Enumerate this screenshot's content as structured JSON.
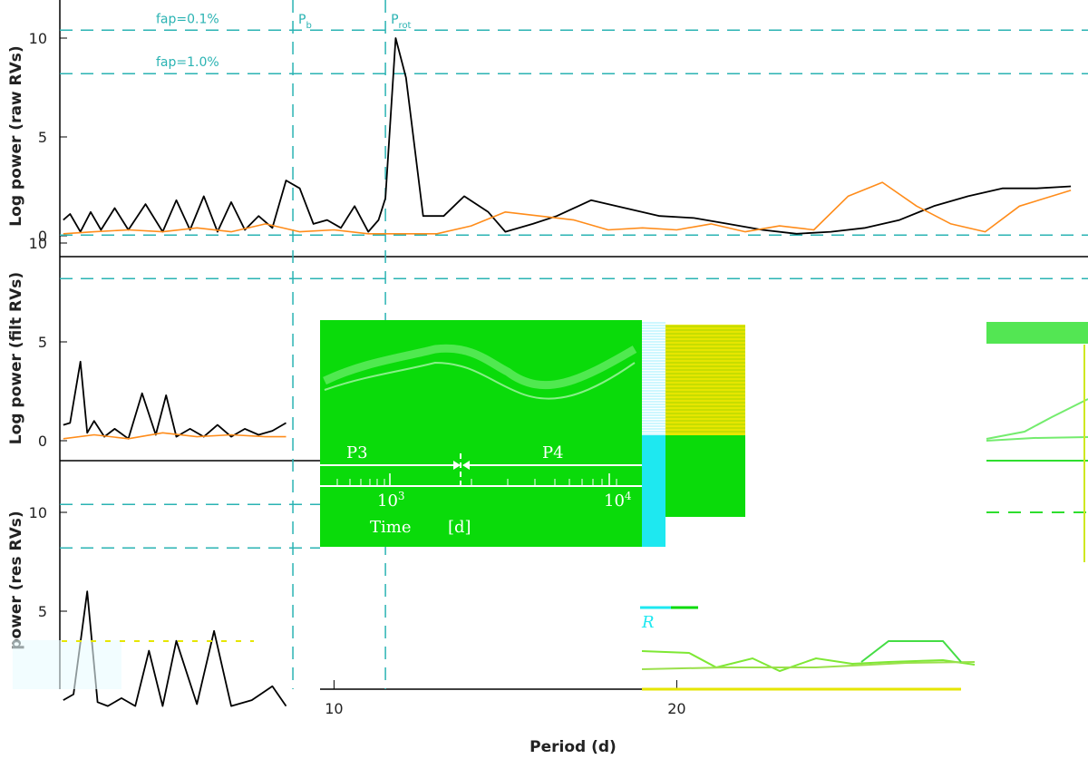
{
  "chart_data": {
    "type": "line",
    "xlabel": "Period (d)",
    "x_ticks": [
      10,
      20
    ],
    "panels": [
      {
        "ylabel": "Log power (raw RVs)",
        "ylim": [
          -1.2,
          14
        ],
        "y_ticks": [
          0,
          5,
          10
        ],
        "fap_levels": [
          {
            "label": "fap=0.1%",
            "value": 10.4
          },
          {
            "label": "fap=1.0%",
            "value": 8.2
          }
        ],
        "series": [
          {
            "color": "#000000",
            "x": [
              2.1,
              2.3,
              2.6,
              2.9,
              3.2,
              3.6,
              4.0,
              4.5,
              5.0,
              5.4,
              5.8,
              6.2,
              6.6,
              7.0,
              7.4,
              7.8,
              8.2,
              8.6,
              9.0,
              9.4,
              9.8,
              10.2,
              10.6,
              11.0,
              11.3,
              11.5,
              11.8,
              12.1,
              12.6,
              13.2,
              13.8,
              14.5,
              15.0,
              15.8,
              16.5,
              17.5,
              18.5,
              19.5,
              20.5,
              21.5,
              22.5,
              23.5,
              24.5,
              25.5,
              26.5,
              27.5,
              28.5,
              29.5,
              30.5,
              31.5
            ],
            "y": [
              0.8,
              1.1,
              0.2,
              1.2,
              0.3,
              1.4,
              0.3,
              1.6,
              0.2,
              1.8,
              0.3,
              2.0,
              0.2,
              1.7,
              0.3,
              1.0,
              0.4,
              2.8,
              2.4,
              0.6,
              0.8,
              0.4,
              1.5,
              0.2,
              0.8,
              1.9,
              10.0,
              8.0,
              1.0,
              1.0,
              2.0,
              1.2,
              0.2,
              0.6,
              1.0,
              1.8,
              1.4,
              1.0,
              0.9,
              0.6,
              0.3,
              0.1,
              0.2,
              0.4,
              0.8,
              1.5,
              2.0,
              2.4,
              2.4,
              2.5
            ]
          },
          {
            "color": "#ff8c1a",
            "x": [
              2.1,
              3.0,
              4.0,
              5.0,
              6.0,
              7.0,
              8.0,
              9.0,
              10.0,
              11.0,
              12.0,
              13.0,
              14.0,
              15.0,
              16.0,
              17.0,
              18.0,
              19.0,
              20.0,
              21.0,
              22.0,
              23.0,
              24.0,
              25.0,
              26.0,
              27.0,
              28.0,
              29.0,
              30.0,
              31.5
            ],
            "y": [
              0.1,
              0.2,
              0.3,
              0.2,
              0.4,
              0.2,
              0.6,
              0.2,
              0.3,
              0.1,
              0.1,
              0.1,
              0.5,
              1.2,
              1.0,
              0.8,
              0.3,
              0.4,
              0.3,
              0.6,
              0.2,
              0.5,
              0.3,
              2.0,
              2.7,
              1.5,
              0.6,
              0.2,
              1.5,
              2.3
            ]
          }
        ]
      },
      {
        "ylabel": "Log power (filt RVs)",
        "ylim": [
          -1.2,
          14
        ],
        "y_ticks": [
          0,
          5,
          10
        ],
        "fap_levels": [
          {
            "label": "",
            "value": 10.4
          },
          {
            "label": "",
            "value": 8.2
          }
        ],
        "series": [
          {
            "color": "#000000",
            "x": [
              2.1,
              2.3,
              2.6,
              2.8,
              3.0,
              3.3,
              3.6,
              4.0,
              4.4,
              4.8,
              5.1,
              5.4,
              5.8,
              6.2,
              6.6,
              7.0,
              7.4,
              7.8,
              8.2,
              8.6
            ],
            "y": [
              0.8,
              0.9,
              4.0,
              0.4,
              1.0,
              0.2,
              0.6,
              0.1,
              2.4,
              0.3,
              2.3,
              0.2,
              0.6,
              0.2,
              0.8,
              0.2,
              0.6,
              0.3,
              0.5,
              0.9
            ]
          },
          {
            "color": "#ff8c1a",
            "x": [
              2.1,
              3.0,
              4.0,
              5.0,
              6.0,
              7.0,
              8.0,
              8.6
            ],
            "y": [
              0.1,
              0.3,
              0.1,
              0.4,
              0.2,
              0.3,
              0.2,
              0.2
            ]
          }
        ]
      },
      {
        "ylabel": "power (res RVs)",
        "ylim": [
          -1.2,
          14
        ],
        "y_ticks": [
          5,
          10
        ],
        "fap_levels": [
          {
            "label": "",
            "value": 10.4
          },
          {
            "label": "",
            "value": 8.2
          }
        ],
        "series": [
          {
            "color": "#000000",
            "x": [
              2.1,
              2.4,
              2.8,
              3.1,
              3.4,
              3.8,
              4.2,
              4.6,
              5.0,
              5.4,
              6.0,
              6.5,
              7.0,
              7.6,
              8.2,
              8.6
            ],
            "y": [
              0.5,
              0.8,
              6.0,
              0.4,
              0.2,
              0.6,
              0.2,
              3.0,
              0.2,
              3.5,
              0.3,
              4.0,
              0.2,
              0.5,
              1.2,
              0.2
            ]
          }
        ]
      }
    ],
    "markers": [
      {
        "label_main": "P",
        "label_sub": "b",
        "x": 8.8
      },
      {
        "label_main": "P",
        "label_sub": "rot",
        "x": 11.5
      }
    ],
    "inset": {
      "xlabel": "Time",
      "xunit": "[d]",
      "tick_base": "10",
      "tick_exps": [
        "3",
        "4"
      ],
      "segments": [
        "P3",
        "P4"
      ]
    },
    "legend_letter": "R"
  }
}
